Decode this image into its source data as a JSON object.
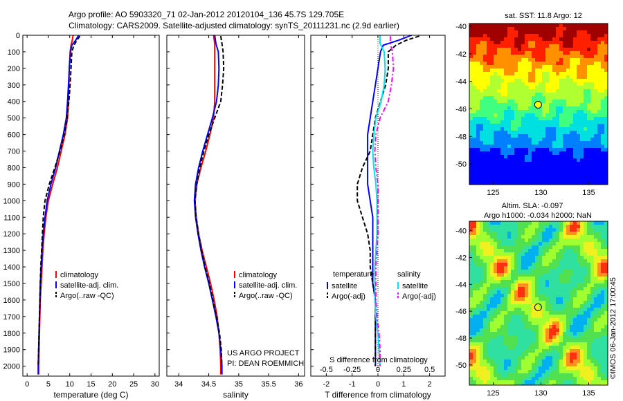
{
  "title": {
    "line1": "Argo profile: AO 5903320_71 02-Jan-2012 20120104_136 45.7S 129.705E",
    "line2": "Climatology: CARS2009. Satellite-adjusted climatology: synTS_20111231.nc (2.9d earlier)"
  },
  "colors": {
    "climatology": "#ff0000",
    "satellite_temp": "#0000ff",
    "satellite_sal": "#00e5ee",
    "argo_temp": "#000000",
    "argo_sal": "#ff00ff"
  },
  "chart_data": [
    {
      "type": "line",
      "id": "temperature",
      "xlabel": "temperature (deg C)",
      "ylabel": "",
      "xlim": [
        -1,
        31
      ],
      "ylim": [
        2060,
        0
      ],
      "xticks": [
        0,
        5,
        10,
        15,
        20,
        25,
        30
      ],
      "yticks": [
        0,
        100,
        200,
        300,
        400,
        500,
        600,
        700,
        800,
        900,
        1000,
        1100,
        1200,
        1300,
        1400,
        1500,
        1600,
        1700,
        1800,
        1900,
        2000
      ],
      "legend": {
        "position": "lower-middle",
        "entries": [
          "climatology",
          "satellite-adj. clim.",
          "Argo(..raw -QC)"
        ]
      },
      "series": [
        {
          "name": "climatology",
          "color": "#ff0000",
          "dash": "solid",
          "depth": [
            0,
            30,
            60,
            100,
            200,
            300,
            400,
            500,
            600,
            700,
            800,
            900,
            1000,
            1100,
            1200,
            1300,
            1400,
            1500,
            1600,
            1700,
            1800,
            1900,
            2000,
            2050
          ],
          "value": [
            10.8,
            10.6,
            10.3,
            10.1,
            9.9,
            9.8,
            9.7,
            9.5,
            8.9,
            8.0,
            7.1,
            6.0,
            5.0,
            4.4,
            4.0,
            3.7,
            3.5,
            3.3,
            3.1,
            3.0,
            2.9,
            2.8,
            2.7,
            2.7
          ]
        },
        {
          "name": "satellite-adj. clim.",
          "color": "#0000ff",
          "dash": "solid",
          "depth": [
            0,
            30,
            60,
            100,
            200,
            300,
            400,
            500,
            600,
            700,
            800,
            900,
            1000,
            1100,
            1200,
            1300,
            1400,
            1500,
            1600,
            1700,
            1800,
            1900,
            2000,
            2050
          ],
          "value": [
            12.1,
            11.4,
            10.5,
            10.2,
            9.9,
            9.7,
            9.5,
            9.2,
            8.5,
            7.6,
            6.7,
            5.6,
            4.7,
            4.2,
            3.8,
            3.5,
            3.3,
            3.1,
            3.0,
            2.9,
            2.8,
            2.7,
            2.6,
            2.6
          ]
        },
        {
          "name": "Argo(..raw -QC)",
          "color": "#000000",
          "dash": "dash",
          "depth": [
            5,
            30,
            60,
            100,
            200,
            300,
            400,
            500,
            600,
            700,
            800,
            900,
            1000,
            1100,
            1200,
            1300,
            1400,
            1500,
            1600,
            1700,
            1800,
            1900,
            2000
          ],
          "value": [
            12.4,
            11.7,
            11.0,
            10.5,
            10.3,
            10.1,
            9.8,
            9.4,
            8.7,
            7.7,
            6.5,
            5.2,
            4.2,
            3.8,
            3.6,
            3.4,
            3.2,
            3.1,
            3.0,
            2.9,
            2.8,
            2.7,
            2.6
          ]
        }
      ],
      "annotation": ""
    },
    {
      "type": "line",
      "id": "salinity",
      "xlabel": "salinity",
      "ylabel": "",
      "xlim": [
        33.8,
        36.1
      ],
      "ylim": [
        2060,
        0
      ],
      "xticks": [
        34,
        34.5,
        35,
        35.5,
        36
      ],
      "yticks": [],
      "legend": {
        "position": "lower-middle",
        "entries": [
          "climatology",
          "satellite-adj. clim.",
          "Argo(..raw -QC)"
        ]
      },
      "series": [
        {
          "name": "climatology",
          "color": "#ff0000",
          "dash": "solid",
          "depth": [
            0,
            50,
            100,
            200,
            300,
            400,
            500,
            600,
            700,
            800,
            900,
            1000,
            1100,
            1200,
            1300,
            1400,
            1500,
            1600,
            1700,
            1800,
            1900,
            2000,
            2050
          ],
          "value": [
            34.58,
            34.6,
            34.6,
            34.6,
            34.6,
            34.6,
            34.58,
            34.52,
            34.45,
            34.37,
            34.3,
            34.27,
            34.29,
            34.33,
            34.39,
            34.46,
            34.53,
            34.59,
            34.64,
            34.67,
            34.69,
            34.7,
            34.7
          ]
        },
        {
          "name": "satellite-adj. clim.",
          "color": "#0000ff",
          "dash": "solid",
          "depth": [
            0,
            50,
            100,
            200,
            300,
            400,
            500,
            600,
            700,
            800,
            900,
            1000,
            1100,
            1200,
            1300,
            1400,
            1500,
            1600,
            1700,
            1800,
            1900,
            2000,
            2050
          ],
          "value": [
            34.6,
            34.62,
            34.66,
            34.67,
            34.66,
            34.63,
            34.56,
            34.48,
            34.4,
            34.33,
            34.28,
            34.26,
            34.28,
            34.32,
            34.37,
            34.43,
            34.5,
            34.56,
            34.62,
            34.67,
            34.7,
            34.72,
            34.72
          ]
        },
        {
          "name": "Argo(..raw -QC)",
          "color": "#000000",
          "dash": "dash",
          "depth": [
            5,
            50,
            100,
            200,
            300,
            400,
            500,
            600,
            700,
            800,
            900,
            1000,
            1100,
            1200,
            1300,
            1400,
            1500,
            1600,
            1700,
            1800,
            1900,
            2000
          ],
          "value": [
            34.7,
            34.72,
            34.74,
            34.75,
            34.73,
            34.7,
            34.6,
            34.5,
            34.42,
            34.35,
            34.3,
            34.27,
            34.29,
            34.33,
            34.38,
            34.44,
            34.51,
            34.57,
            34.63,
            34.68,
            34.71,
            34.72
          ]
        }
      ],
      "annotation": "US ARGO PROJECT\nPI: DEAN ROEMMICH"
    },
    {
      "type": "line",
      "id": "differences",
      "xlabel": "T difference from climatology",
      "x2label": "S difference from climatology",
      "ylabel": "",
      "xlim": [
        -2.6,
        2.6
      ],
      "ylim": [
        2060,
        0
      ],
      "xticks": [
        -2,
        -1,
        0,
        1,
        2
      ],
      "x2ticks": [
        "-0.5",
        "-0.25",
        "0",
        "0.25",
        "0.5"
      ],
      "yticks": [],
      "legend": {
        "position": "lower",
        "temperature": {
          "title": "temperature",
          "entries": [
            "satellite",
            "Argo(-adj)"
          ]
        },
        "salinity": {
          "title": "salinity",
          "entries": [
            "satellite",
            "Argo(-adj)"
          ]
        }
      },
      "series": [
        {
          "name": "satellite",
          "group": "temperature",
          "color": "#0000ff",
          "dash": "solid",
          "depth": [
            0,
            30,
            60,
            100,
            200,
            300,
            400,
            500,
            600,
            700,
            800,
            900,
            1000,
            1100,
            1200,
            1300,
            1400,
            1500,
            1600,
            1700,
            1800,
            1900,
            2000
          ],
          "value": [
            1.3,
            0.8,
            0.2,
            0.1,
            0.0,
            -0.1,
            -0.2,
            -0.3,
            -0.4,
            -0.4,
            -0.4,
            -0.4,
            -0.3,
            -0.2,
            -0.2,
            -0.2,
            -0.2,
            -0.2,
            -0.1,
            -0.1,
            -0.1,
            -0.1,
            -0.1
          ]
        },
        {
          "name": "Argo(-adj)",
          "group": "temperature",
          "color": "#000000",
          "dash": "dash",
          "depth": [
            5,
            30,
            60,
            100,
            200,
            300,
            400,
            500,
            600,
            700,
            800,
            900,
            1000,
            1100,
            1200,
            1300,
            1400,
            1500,
            1600,
            1700,
            1800,
            1900,
            2000
          ],
          "value": [
            1.6,
            1.1,
            0.7,
            0.4,
            0.4,
            0.3,
            0.1,
            -0.1,
            -0.2,
            -0.3,
            -0.6,
            -0.8,
            -0.8,
            -0.6,
            -0.4,
            -0.3,
            -0.3,
            -0.2,
            -0.1,
            -0.1,
            -0.1,
            -0.1,
            -0.1
          ]
        },
        {
          "name": "satellite",
          "group": "salinity",
          "color": "#00e5ee",
          "dash": "solid",
          "depth": [
            0,
            50,
            100,
            200,
            300,
            400,
            500,
            600,
            700,
            800,
            900,
            1000,
            1100,
            1200,
            1300,
            1400,
            1500,
            1600,
            1700,
            1800,
            1900,
            2000
          ],
          "value": [
            0.02,
            0.02,
            0.06,
            0.07,
            0.06,
            0.03,
            -0.02,
            -0.04,
            -0.05,
            -0.04,
            -0.02,
            -0.01,
            -0.01,
            -0.01,
            -0.02,
            -0.03,
            -0.03,
            -0.03,
            -0.02,
            0.0,
            0.01,
            0.02
          ]
        },
        {
          "name": "Argo(-adj)",
          "group": "salinity",
          "color": "#ff00ff",
          "dash": "dashdot",
          "depth": [
            5,
            50,
            100,
            200,
            300,
            400,
            500,
            600,
            700,
            800,
            900,
            1000,
            1100,
            1200,
            1300,
            1400,
            1500,
            1600,
            1700,
            1800,
            1900,
            2000
          ],
          "value": [
            0.12,
            0.12,
            0.14,
            0.15,
            0.13,
            0.1,
            0.02,
            -0.02,
            -0.03,
            -0.02,
            0.0,
            0.0,
            0.0,
            0.0,
            -0.01,
            -0.02,
            -0.02,
            -0.02,
            -0.01,
            0.01,
            0.02,
            0.02
          ]
        }
      ]
    },
    {
      "type": "heatmap",
      "id": "sst-map",
      "title": "sat. SST: 11.8 Argo: 12",
      "xlim": [
        122.5,
        137
      ],
      "ylim": [
        -51.5,
        -39.8
      ],
      "xticks": [
        125,
        130,
        135
      ],
      "yticks": [
        -40,
        -42,
        -44,
        -46,
        -48,
        -50
      ],
      "point": {
        "lon": 129.705,
        "lat": -45.7,
        "color": "#ffff00"
      }
    },
    {
      "type": "heatmap",
      "id": "sla-map",
      "title": "Altim. SLA: -0.097",
      "subtitle": "Argo h1000: -0.034 h2000: NaN",
      "xlim": [
        122.5,
        137
      ],
      "ylim": [
        -51.5,
        -39.3
      ],
      "xticks": [
        125,
        130,
        135
      ],
      "yticks": [
        -40,
        -42,
        -44,
        -46,
        -48,
        -50
      ],
      "point": {
        "lon": 129.705,
        "lat": -45.7,
        "color": "#00cc44"
      }
    }
  ],
  "watermark": "©IMOS 06-Jan-2012 17:00:45"
}
